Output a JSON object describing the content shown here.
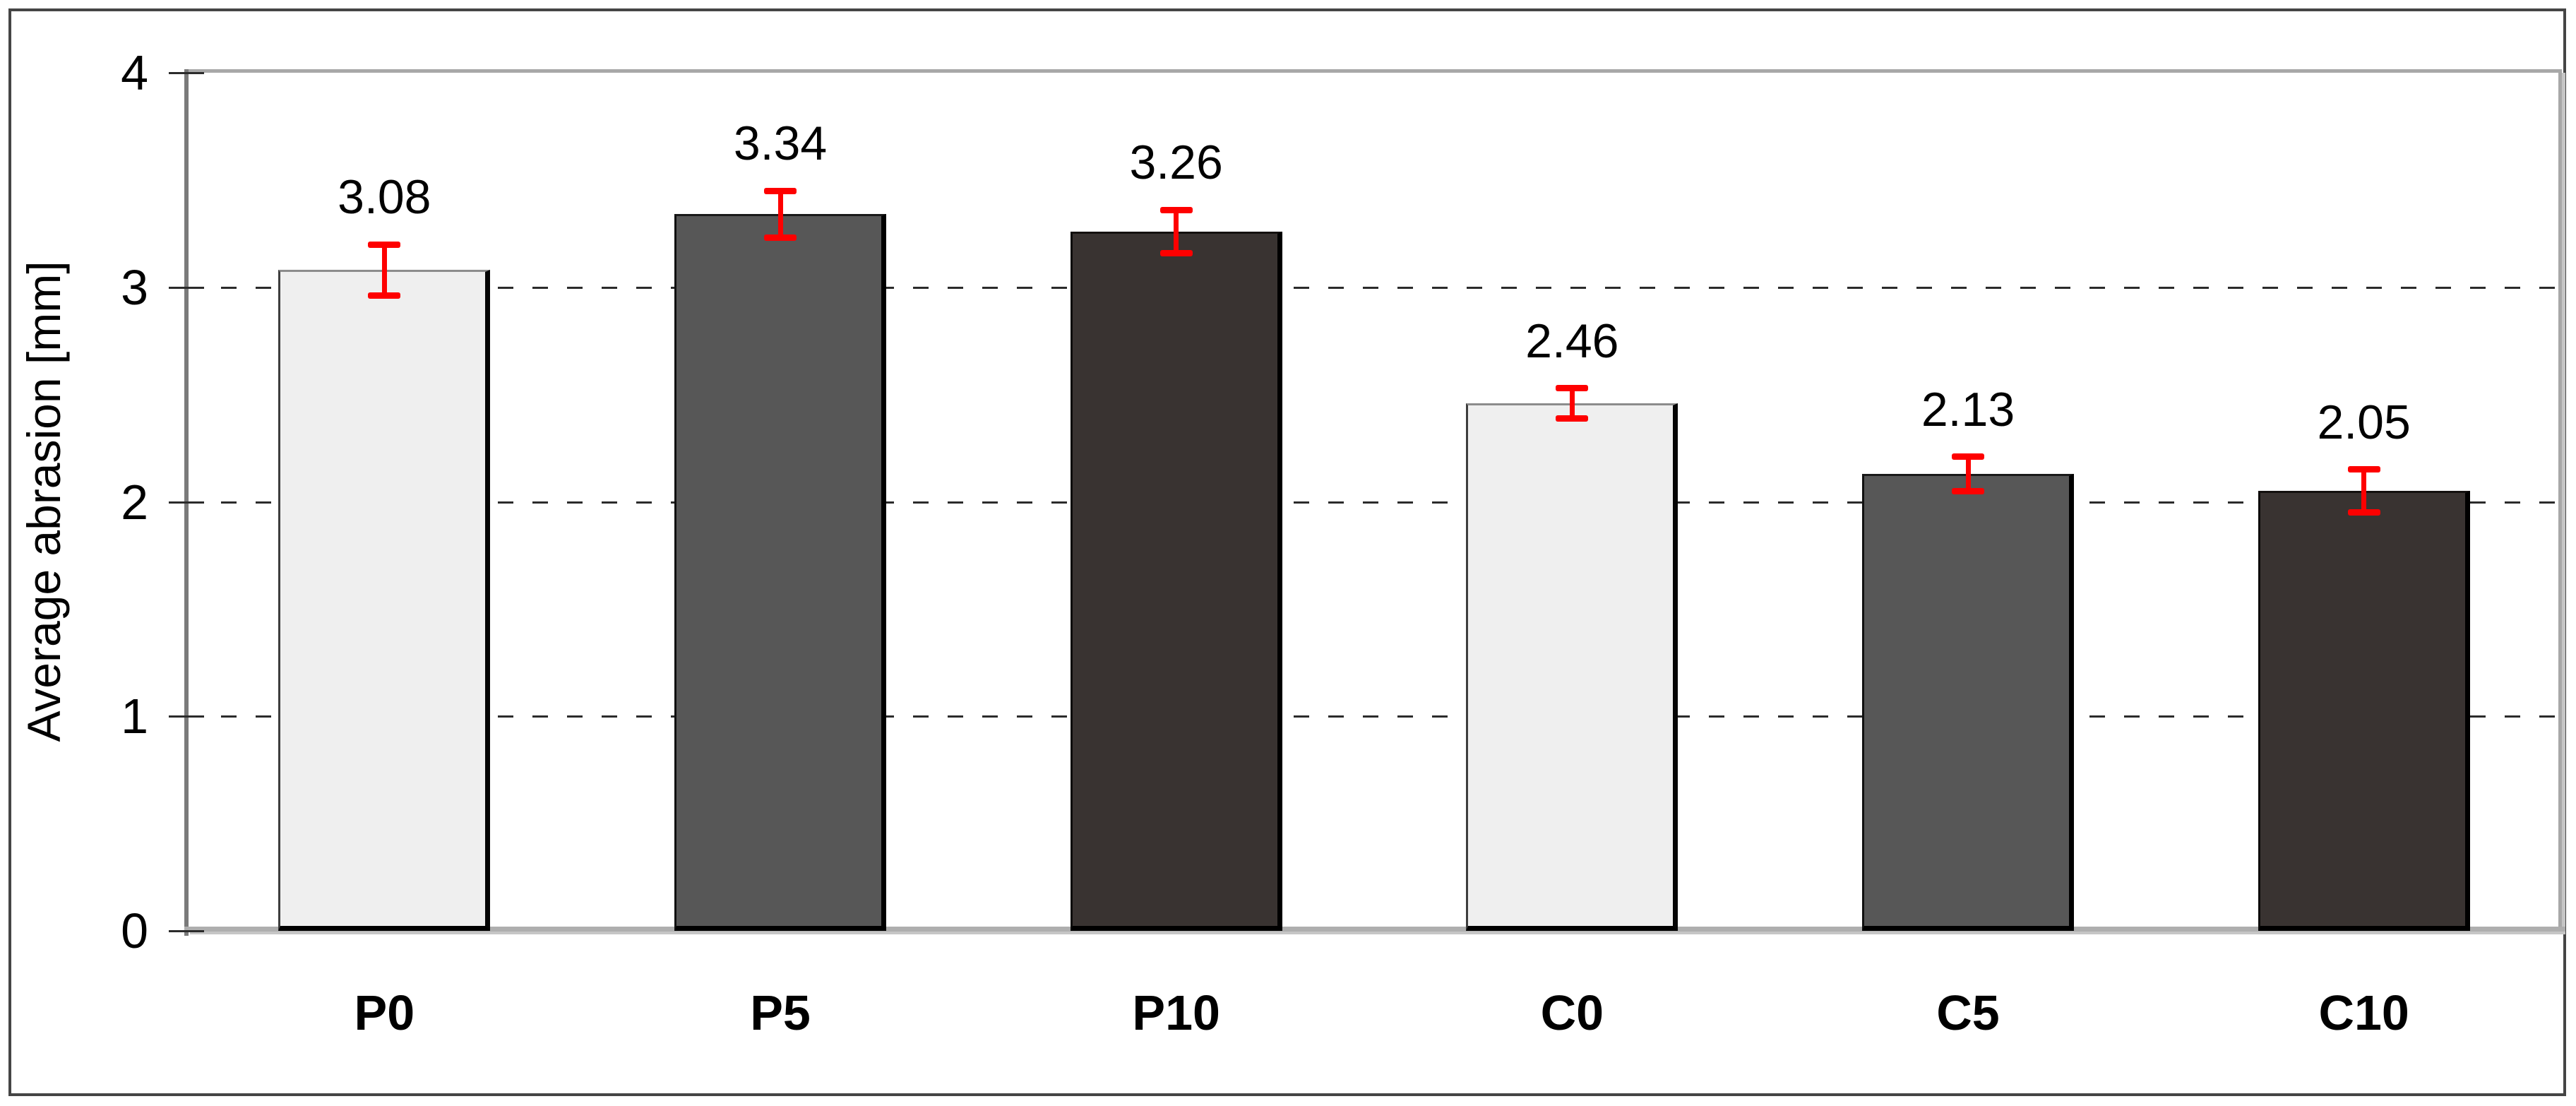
{
  "chart_data": {
    "type": "bar",
    "title": "",
    "xlabel": "",
    "ylabel": "Average abrasion [mm]",
    "ylim": [
      0,
      4
    ],
    "yticks": [
      0,
      1,
      2,
      3,
      4
    ],
    "ytick_labels": [
      "0",
      "1",
      "2",
      "3",
      "4"
    ],
    "gridlines": [
      1,
      2,
      3
    ],
    "gridline_style": "dashed",
    "legend_position": "none",
    "categories": [
      "P0",
      "P5",
      "P10",
      "C0",
      "C5",
      "C10"
    ],
    "values": [
      3.08,
      3.34,
      3.26,
      2.46,
      2.13,
      2.05
    ],
    "bars": [
      {
        "label": "P0",
        "value": 3.08,
        "display": "3.08",
        "error": 0.12,
        "shade": "light",
        "fill": "#efefef"
      },
      {
        "label": "P5",
        "value": 3.34,
        "display": "3.34",
        "error": 0.11,
        "shade": "mid",
        "fill": "#575757"
      },
      {
        "label": "P10",
        "value": 3.26,
        "display": "3.26",
        "error": 0.1,
        "shade": "dark",
        "fill": "#393331"
      },
      {
        "label": "C0",
        "value": 2.46,
        "display": "2.46",
        "error": 0.07,
        "shade": "light",
        "fill": "#efefef"
      },
      {
        "label": "C5",
        "value": 2.13,
        "display": "2.13",
        "error": 0.08,
        "shade": "mid",
        "fill": "#575757"
      },
      {
        "label": "C10",
        "value": 2.05,
        "display": "2.05",
        "error": 0.1,
        "shade": "dark",
        "fill": "#393331"
      }
    ]
  },
  "colors": {
    "error_bar": "#fe0000",
    "gridline": "#2b2b2b",
    "plot_border": "#a8a8a8",
    "plot_border_shadow": "#c6c6c6",
    "y_axis_line": "#7a7a7a",
    "x_axis_line": "#aeaeae",
    "outer_border": "#454545",
    "text": "#000000",
    "background": "#ffffff",
    "bar_light": "#efefef",
    "bar_mid": "#575757",
    "bar_dark": "#393331"
  }
}
